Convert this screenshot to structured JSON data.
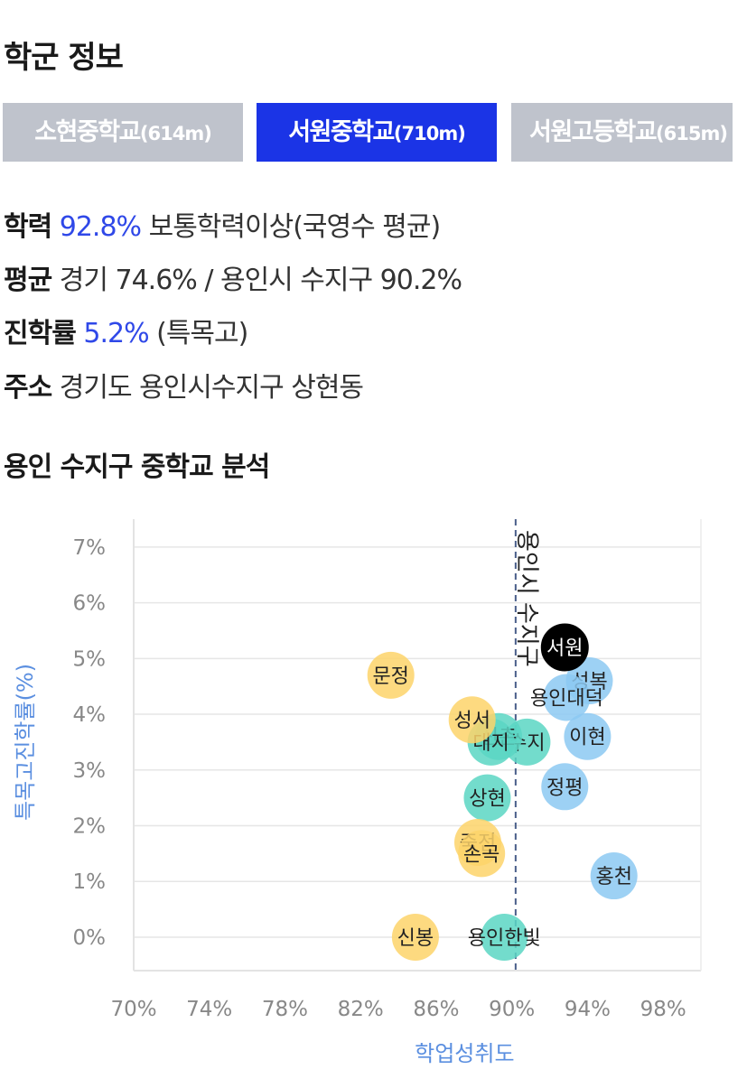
{
  "section_title": "학군 정보",
  "tabs": [
    {
      "name": "소현중학교",
      "dist": "(614m)",
      "active": false
    },
    {
      "name": "서원중학교",
      "dist": "(710m)",
      "active": true
    },
    {
      "name": "서원고등학교",
      "dist": "(615m)",
      "active": false
    }
  ],
  "info": {
    "academic": {
      "key": "학력",
      "value": "92.8%",
      "desc": "보통학력이상(국영수 평균)"
    },
    "average": {
      "key": "평균",
      "value": "경기 74.6% / 용인시 수지구 90.2%"
    },
    "advance": {
      "key": "진학률",
      "value": "5.2%",
      "desc": "(특목고)"
    },
    "address": {
      "key": "주소",
      "value": "경기도 용인시수지구 상현동"
    }
  },
  "analysis_title": "용인 수지구 중학교 분석",
  "colors": {
    "blue": "#8cc9f2",
    "teal": "#5ad6c3",
    "yellow": "#fdd36a",
    "selected": "#000000",
    "accent": "#2f48e8",
    "axis_label": "#5b8fe0"
  },
  "chart_data": {
    "type": "scatter",
    "xlabel": "학업성취도",
    "ylabel": "특목고진학률(%)",
    "xlim": [
      70,
      100
    ],
    "ylim": [
      -0.6,
      7.5
    ],
    "x_ticks": [
      "70%",
      "74%",
      "78%",
      "82%",
      "86%",
      "90%",
      "94%",
      "98%"
    ],
    "x_tick_values": [
      70,
      74,
      78,
      82,
      86,
      90,
      94,
      98
    ],
    "y_ticks": [
      "0%",
      "1%",
      "2%",
      "3%",
      "4%",
      "5%",
      "6%",
      "7%"
    ],
    "y_tick_values": [
      0,
      1,
      2,
      3,
      4,
      5,
      6,
      7
    ],
    "grid": true,
    "reference_line": {
      "x": 90.2,
      "label": "용인시 수지구"
    },
    "points": [
      {
        "label": "서원",
        "x": 92.8,
        "y": 5.2,
        "group": "selected"
      },
      {
        "label": "성복",
        "x": 94.1,
        "y": 4.6,
        "group": "blue"
      },
      {
        "label": "용인대덕",
        "x": 92.9,
        "y": 4.3,
        "group": "blue"
      },
      {
        "label": "이현",
        "x": 94.0,
        "y": 3.6,
        "group": "blue"
      },
      {
        "label": "정평",
        "x": 92.8,
        "y": 2.7,
        "group": "blue"
      },
      {
        "label": "홍천",
        "x": 95.4,
        "y": 1.1,
        "group": "blue"
      },
      {
        "label": "수지",
        "x": 90.8,
        "y": 3.5,
        "group": "teal"
      },
      {
        "label": "신촌",
        "x": 89.3,
        "y": 3.6,
        "group": "teal"
      },
      {
        "label": "대지",
        "x": 88.9,
        "y": 3.5,
        "group": "teal"
      },
      {
        "label": "상현",
        "x": 88.7,
        "y": 2.5,
        "group": "teal"
      },
      {
        "label": "용인한빛",
        "x": 89.6,
        "y": 0.0,
        "group": "teal"
      },
      {
        "label": "문정",
        "x": 83.6,
        "y": 4.7,
        "group": "yellow"
      },
      {
        "label": "성서",
        "x": 87.9,
        "y": 3.9,
        "group": "yellow"
      },
      {
        "label": "죽전",
        "x": 88.2,
        "y": 1.7,
        "group": "yellow"
      },
      {
        "label": "손곡",
        "x": 88.4,
        "y": 1.5,
        "group": "yellow"
      },
      {
        "label": "신봉",
        "x": 84.9,
        "y": 0.0,
        "group": "yellow"
      }
    ]
  }
}
